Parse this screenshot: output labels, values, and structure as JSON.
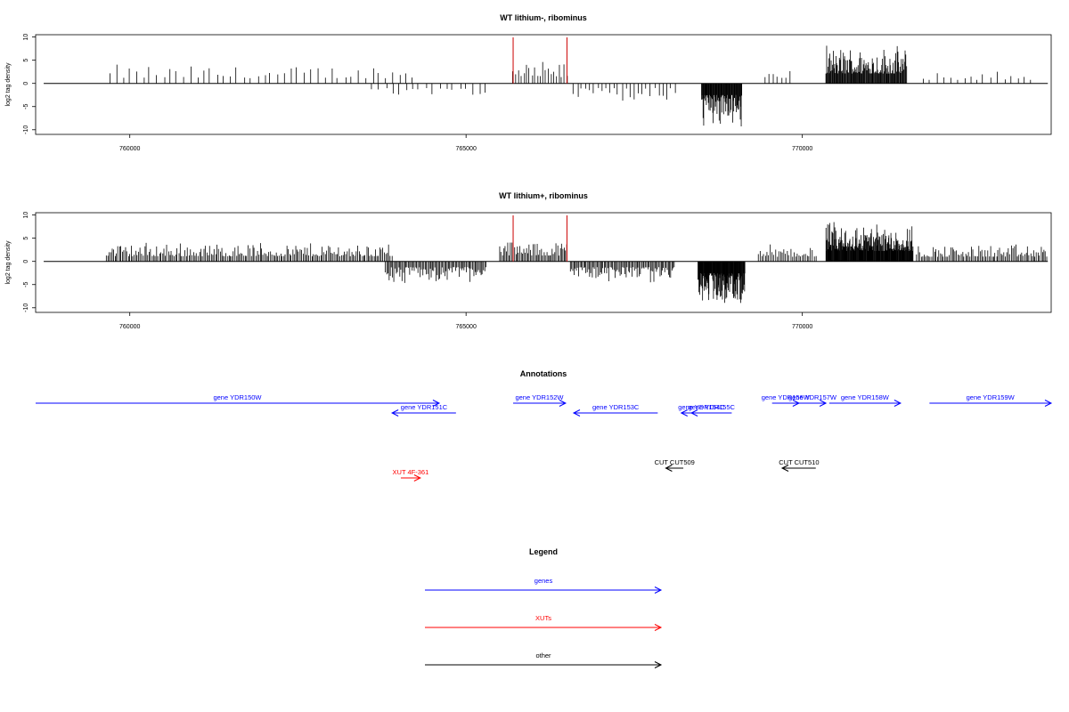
{
  "chart_data": [
    {
      "type": "bar",
      "title": "WT lithium-, ribominus",
      "ylabel": "log2 tag density",
      "xlabel": "",
      "xlim": [
        758600,
        773700
      ],
      "ylim": [
        -11,
        10.5
      ],
      "yticks": [
        10,
        5,
        0,
        -5,
        -10
      ],
      "ytick_labels": [
        "10",
        "5",
        "0",
        "-5",
        "-10"
      ],
      "xticks": [
        760000,
        765000,
        770000
      ],
      "xtick_labels": [
        "760000",
        "765000",
        "770000"
      ],
      "grid": false,
      "baseline": [
        758720,
        773650
      ],
      "red_markers": [
        765700,
        766500
      ],
      "clusters": [
        {
          "from": 759700,
          "to": 764200,
          "sign": 1,
          "amp": 4.5,
          "step": 100
        },
        {
          "from": 763600,
          "to": 765300,
          "sign": -1,
          "amp": 4.0,
          "step": 100
        },
        {
          "from": 765700,
          "to": 766500,
          "sign": 1,
          "amp": 5.0,
          "step": 40
        },
        {
          "from": 766600,
          "to": 768100,
          "sign": -1,
          "amp": 4.0,
          "step": 60
        },
        {
          "from": 768500,
          "to": 769100,
          "sign": -1,
          "amp": 10.0,
          "step": 8
        },
        {
          "from": 769450,
          "to": 769850,
          "sign": 1,
          "amp": 4.0,
          "step": 60
        },
        {
          "from": 770350,
          "to": 771550,
          "sign": 1,
          "amp": 8.5,
          "step": 10
        },
        {
          "from": 771800,
          "to": 773400,
          "sign": 1,
          "amp": 3.0,
          "step": 100
        }
      ]
    },
    {
      "type": "bar",
      "title": "WT lithium+, ribominus",
      "ylabel": "log2 tag density",
      "xlabel": "",
      "xlim": [
        758600,
        773700
      ],
      "ylim": [
        -11,
        10.5
      ],
      "yticks": [
        10,
        5,
        0,
        -5,
        -10
      ],
      "ytick_labels": [
        "10",
        "5",
        "0",
        "-5",
        "-10"
      ],
      "xticks": [
        760000,
        765000,
        770000
      ],
      "xtick_labels": [
        "760000",
        "765000",
        "770000"
      ],
      "grid": false,
      "baseline": [
        758720,
        773650
      ],
      "red_markers": [
        765700,
        766500
      ],
      "clusters": [
        {
          "from": 759650,
          "to": 763900,
          "sign": 1,
          "amp": 4.5,
          "step": 22
        },
        {
          "from": 763800,
          "to": 765300,
          "sign": -1,
          "amp": 5.0,
          "step": 18
        },
        {
          "from": 765500,
          "to": 766500,
          "sign": 1,
          "amp": 5.0,
          "step": 20
        },
        {
          "from": 766550,
          "to": 768100,
          "sign": -1,
          "amp": 5.0,
          "step": 18
        },
        {
          "from": 768450,
          "to": 769150,
          "sign": -1,
          "amp": 10.0,
          "step": 6
        },
        {
          "from": 769350,
          "to": 770200,
          "sign": 1,
          "amp": 4.0,
          "step": 25
        },
        {
          "from": 770350,
          "to": 771650,
          "sign": 1,
          "amp": 9.0,
          "step": 7
        },
        {
          "from": 771700,
          "to": 773650,
          "sign": 1,
          "amp": 4.0,
          "step": 22
        }
      ]
    }
  ],
  "annotations": {
    "title": "Annotations",
    "items": [
      {
        "label": "gene YDR150W",
        "kind": "gene",
        "from": 758600,
        "to": 764600,
        "strand": "+",
        "row": 0
      },
      {
        "label": "gene YDR151C",
        "kind": "gene",
        "from": 763900,
        "to": 764850,
        "strand": "-",
        "row": 1
      },
      {
        "label": "gene YDR152W",
        "kind": "gene",
        "from": 765700,
        "to": 766480,
        "strand": "+",
        "row": 0
      },
      {
        "label": "gene YDR153C",
        "kind": "gene",
        "from": 766600,
        "to": 767850,
        "strand": "-",
        "row": 1
      },
      {
        "label": "gene YDR154C",
        "kind": "gene",
        "from": 768200,
        "to": 768800,
        "strand": "-",
        "row": 1
      },
      {
        "label": "gene YDR155C",
        "kind": "gene",
        "from": 768350,
        "to": 768950,
        "strand": "-",
        "row": 1
      },
      {
        "label": "gene YDR156W",
        "kind": "gene",
        "from": 769550,
        "to": 769950,
        "strand": "+",
        "row": 0
      },
      {
        "label": "gene YDR157W",
        "kind": "gene",
        "from": 769950,
        "to": 770350,
        "strand": "+",
        "row": 0
      },
      {
        "label": "gene YDR158W",
        "kind": "gene",
        "from": 770400,
        "to": 771460,
        "strand": "+",
        "row": 0
      },
      {
        "label": "gene YDR159W",
        "kind": "gene",
        "from": 771890,
        "to": 773700,
        "strand": "+",
        "row": 0
      },
      {
        "label": "CUT CUT509",
        "kind": "other",
        "from": 767970,
        "to": 768230,
        "strand": "-",
        "row": 3
      },
      {
        "label": "CUT CUT510",
        "kind": "other",
        "from": 769700,
        "to": 770200,
        "strand": "-",
        "row": 3
      },
      {
        "label": "XUT 4F-361",
        "kind": "xut",
        "from": 764030,
        "to": 764320,
        "strand": "+",
        "row": 4
      }
    ]
  },
  "legend": {
    "title": "Legend",
    "entries": [
      {
        "label": "genes",
        "color": "#0000ff"
      },
      {
        "label": "XUTs",
        "color": "#ff0000"
      },
      {
        "label": "other",
        "color": "#000000"
      }
    ]
  },
  "colors": {
    "gene": "#0000ff",
    "xut": "#ff0000",
    "other": "#000000",
    "marker": "#cc0000",
    "axis": "#000000"
  }
}
